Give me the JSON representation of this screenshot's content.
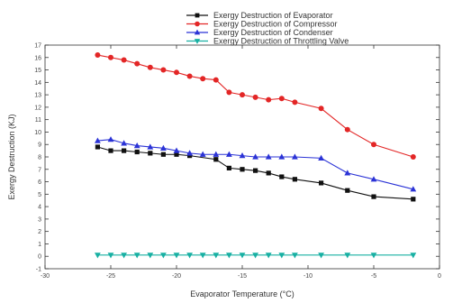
{
  "chart_data": {
    "type": "line",
    "title": "",
    "xlabel": "Evaporator Temperature (°C)",
    "ylabel": "Exergy Destruction (KJ)",
    "xlim": [
      -30,
      0
    ],
    "ylim": [
      -1,
      17
    ],
    "xticks": [
      -30,
      -25,
      -20,
      -15,
      -10,
      -5,
      0
    ],
    "yticks": [
      -1,
      0,
      1,
      2,
      3,
      4,
      5,
      6,
      7,
      8,
      9,
      10,
      11,
      12,
      13,
      14,
      15,
      16,
      17
    ],
    "grid": false,
    "legend_position": "top-right",
    "series": [
      {
        "name": "Exergy Destruction of Evaporator",
        "color": "#111111",
        "marker": "square",
        "x": [
          -26,
          -25,
          -24,
          -23,
          -22,
          -21,
          -20,
          -19,
          -17,
          -16,
          -15,
          -14,
          -13,
          -12,
          -11,
          -9,
          -7,
          -5,
          -2
        ],
        "y": [
          8.8,
          8.5,
          8.5,
          8.4,
          8.3,
          8.2,
          8.2,
          8.1,
          7.8,
          7.1,
          7.0,
          6.9,
          6.7,
          6.4,
          6.2,
          5.9,
          5.3,
          4.8,
          4.6
        ]
      },
      {
        "name": "Exergy Destruction of Compressor",
        "color": "#e32626",
        "marker": "circle",
        "x": [
          -26,
          -25,
          -24,
          -23,
          -22,
          -21,
          -20,
          -19,
          -18,
          -17,
          -16,
          -15,
          -14,
          -13,
          -12,
          -11,
          -9,
          -7,
          -5,
          -2
        ],
        "y": [
          16.2,
          16.0,
          15.8,
          15.5,
          15.2,
          15.0,
          14.8,
          14.5,
          14.3,
          14.2,
          13.2,
          13.0,
          12.8,
          12.6,
          12.7,
          12.4,
          11.9,
          10.2,
          9.0,
          8.0
        ]
      },
      {
        "name": "Exergy Destruction of Condenser",
        "color": "#2b33d6",
        "marker": "triangle-up",
        "x": [
          -26,
          -25,
          -24,
          -23,
          -22,
          -21,
          -20,
          -19,
          -18,
          -17,
          -16,
          -15,
          -14,
          -13,
          -12,
          -11,
          -9,
          -7,
          -5,
          -2
        ],
        "y": [
          9.3,
          9.4,
          9.1,
          8.9,
          8.8,
          8.7,
          8.5,
          8.3,
          8.2,
          8.2,
          8.2,
          8.1,
          8.0,
          8.0,
          8.0,
          8.0,
          7.9,
          6.7,
          6.2,
          5.4
        ]
      },
      {
        "name": "Exergy Destruction of Throttling Valve",
        "color": "#18b0a3",
        "marker": "triangle-down",
        "x": [
          -26,
          -25,
          -24,
          -23,
          -22,
          -21,
          -20,
          -19,
          -18,
          -17,
          -16,
          -15,
          -14,
          -13,
          -12,
          -11,
          -9,
          -7,
          -5,
          -2
        ],
        "y": [
          0.1,
          0.1,
          0.1,
          0.1,
          0.1,
          0.1,
          0.1,
          0.1,
          0.1,
          0.1,
          0.1,
          0.1,
          0.1,
          0.1,
          0.1,
          0.1,
          0.1,
          0.1,
          0.1,
          0.1
        ]
      }
    ]
  }
}
